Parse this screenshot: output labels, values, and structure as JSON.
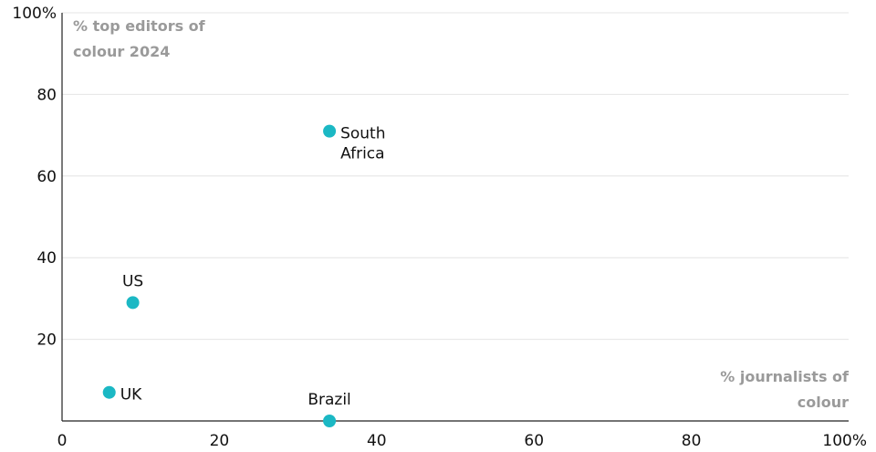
{
  "colors": {
    "point": "#1bb8c4",
    "grid": "#e4e4e4",
    "axis": "#222222",
    "axis_title": "#9a9a9a",
    "text": "#111111"
  },
  "chart_data": {
    "type": "scatter",
    "title": "",
    "ylabel_lines": [
      "% top editors of",
      "colour 2024"
    ],
    "xlabel_lines": [
      "% journalists of",
      "colour"
    ],
    "xlim": [
      0,
      100
    ],
    "ylim": [
      0,
      100
    ],
    "x_ticks": [
      {
        "value": 0,
        "label": "0"
      },
      {
        "value": 20,
        "label": "20"
      },
      {
        "value": 40,
        "label": "40"
      },
      {
        "value": 60,
        "label": "60"
      },
      {
        "value": 80,
        "label": "80"
      },
      {
        "value": 100,
        "label": "100%"
      }
    ],
    "y_ticks": [
      {
        "value": 20,
        "label": "20"
      },
      {
        "value": 40,
        "label": "40"
      },
      {
        "value": 60,
        "label": "60"
      },
      {
        "value": 80,
        "label": "80"
      },
      {
        "value": 100,
        "label": "100%"
      }
    ],
    "grid": "horizontal",
    "points": [
      {
        "name": "UK",
        "label_lines": [
          "UK"
        ],
        "x": 6,
        "y": 7,
        "label_side": "right"
      },
      {
        "name": "US",
        "label_lines": [
          "US"
        ],
        "x": 9,
        "y": 29,
        "label_side": "above"
      },
      {
        "name": "South Africa",
        "label_lines": [
          "South",
          "Africa"
        ],
        "x": 34,
        "y": 71,
        "label_side": "right"
      },
      {
        "name": "Brazil",
        "label_lines": [
          "Brazil"
        ],
        "x": 34,
        "y": 0,
        "label_side": "above"
      }
    ]
  }
}
